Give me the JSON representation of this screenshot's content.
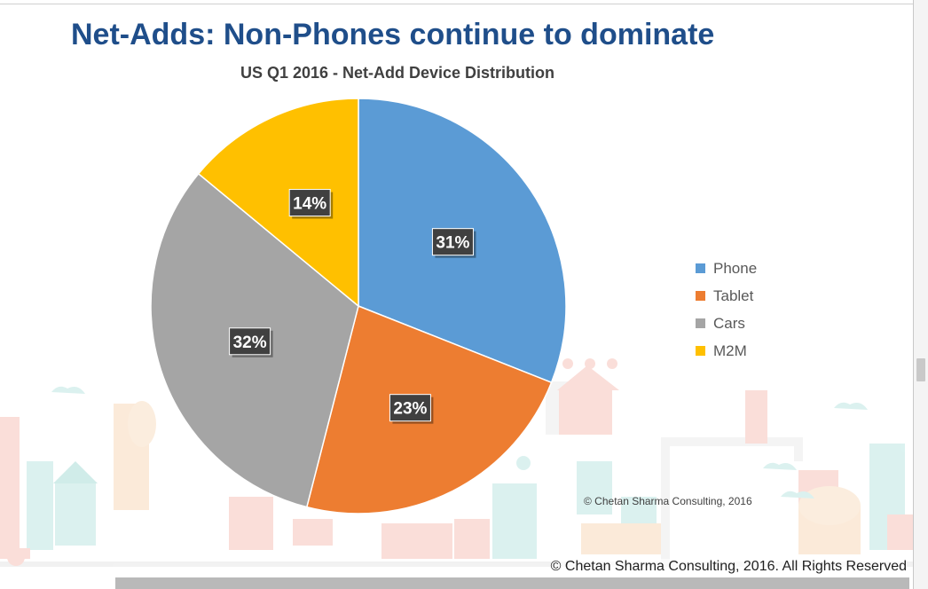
{
  "slide": {
    "title": "Net-Adds: Non-Phones continue to dominate",
    "footer": "© Chetan Sharma Consulting, 2016. All Rights Reserved"
  },
  "chart_data": {
    "type": "pie",
    "title": "US Q1 2016 - Net-Add Device Distribution",
    "categories": [
      "Phone",
      "Tablet",
      "Cars",
      "M2M"
    ],
    "values": [
      31,
      23,
      32,
      14
    ],
    "labels": [
      "31%",
      "23%",
      "32%",
      "14%"
    ],
    "colors": [
      "#5b9bd5",
      "#ed7d31",
      "#a5a5a5",
      "#ffc000"
    ],
    "start_angle": "12 o'clock, clockwise",
    "legend_position": "right",
    "credit": "© Chetan Sharma Consulting, 2016"
  }
}
